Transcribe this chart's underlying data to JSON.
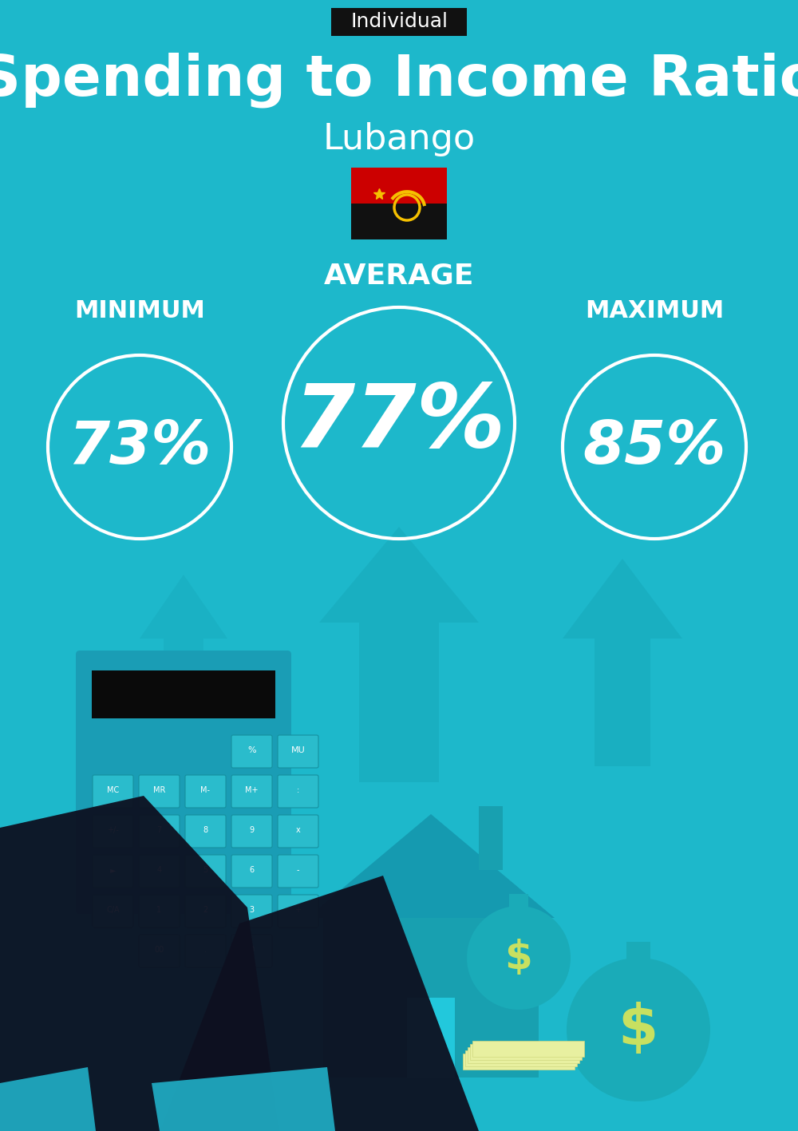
{
  "bg_color": "#1db8cb",
  "title": "Spending to Income Ratio",
  "subtitle": "Lubango",
  "tag_text": "Individual",
  "tag_bg": "#111111",
  "tag_text_color": "#ffffff",
  "title_color": "#ffffff",
  "subtitle_color": "#ffffff",
  "min_label": "MINIMUM",
  "avg_label": "AVERAGE",
  "max_label": "MAXIMUM",
  "min_value": "73%",
  "avg_value": "77%",
  "max_value": "85%",
  "circle_color": "#ffffff",
  "circle_text_color": "#ffffff",
  "label_color": "#ffffff",
  "deco_arrow_color": "#18a8bb",
  "fig_width": 10.0,
  "fig_height": 14.17,
  "dpi": 100
}
